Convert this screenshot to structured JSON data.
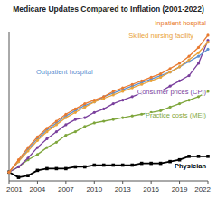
{
  "chart_data": {
    "type": "line",
    "title": "Medicare Updates Compared to Inflation (2001-2022)",
    "x": [
      2001,
      2002,
      2003,
      2004,
      2005,
      2006,
      2007,
      2008,
      2009,
      2010,
      2011,
      2012,
      2013,
      2014,
      2015,
      2016,
      2017,
      2018,
      2019,
      2020,
      2021,
      2022
    ],
    "xlim": [
      2001,
      2022
    ],
    "xticks": [
      2001,
      2004,
      2007,
      2010,
      2013,
      2016,
      2019,
      2022
    ],
    "ylim": [
      -5,
      80
    ],
    "tick_labels": "x",
    "grid": false,
    "series": [
      {
        "name": "Inpatient hospital",
        "color": "#e87a30",
        "marker": "circle",
        "values": [
          0,
          7,
          14,
          20,
          25,
          29,
          33,
          36,
          39,
          41,
          43,
          46,
          48,
          50,
          52,
          54,
          56,
          59,
          62,
          66,
          71,
          78
        ]
      },
      {
        "name": "Skilled nursing facility",
        "color": "#e8a23a",
        "marker": "circle",
        "values": [
          0,
          6,
          12,
          18,
          23,
          27,
          31,
          34,
          37,
          40,
          42,
          44,
          46,
          48,
          50,
          52,
          54,
          57,
          60,
          64,
          68,
          74
        ]
      },
      {
        "name": "Outpatient hospital",
        "color": "#5b8fd0",
        "marker": "circle",
        "values": [
          0,
          6,
          13,
          19,
          24,
          28,
          32,
          35,
          38,
          40,
          43,
          45,
          47,
          49,
          51,
          53,
          55,
          57,
          60,
          63,
          66,
          70
        ]
      },
      {
        "name": "Consumer prices (CPI)",
        "color": "#7a3f9d",
        "marker": "circle",
        "values": [
          0,
          3,
          8,
          14,
          19,
          23,
          27,
          30,
          31,
          34,
          36,
          39,
          41,
          43,
          45,
          45,
          46,
          49,
          52,
          55,
          62,
          75
        ]
      },
      {
        "name": "Practice costs (MEI)",
        "color": "#7ea63c",
        "marker": "circle",
        "values": [
          0,
          3,
          7,
          10,
          14,
          17,
          21,
          23,
          26,
          28,
          29,
          30,
          31,
          32,
          33,
          34,
          35,
          37,
          39,
          41,
          43,
          46
        ]
      },
      {
        "name": "Physician",
        "color": "#000000",
        "marker": "square",
        "values": [
          0,
          -3,
          -2,
          1,
          2,
          2,
          2,
          3,
          3,
          4,
          4,
          4,
          4,
          4,
          5,
          5,
          5,
          6,
          7,
          9,
          9,
          9
        ]
      }
    ]
  }
}
